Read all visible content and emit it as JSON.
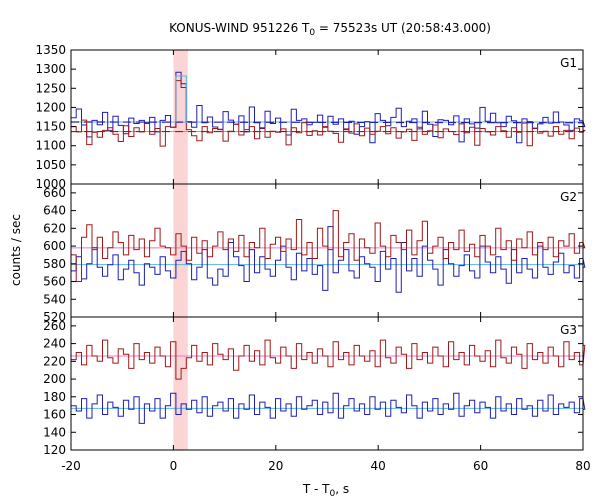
{
  "chart_data": {
    "type": "line",
    "title": "KONUS-WIND 951226 T₀ = 75523s UT (20:58:43.000)",
    "title_parts": {
      "prefix": "KONUS-WIND 951226 T",
      "sub": "0",
      "suffix": " = 75523s UT (20:58:43.000)"
    },
    "xlabel_parts": {
      "prefix": "T - T",
      "sub": "0",
      "suffix": ", s"
    },
    "ylabel": "counts / sec",
    "xlim": [
      -20,
      80
    ],
    "xticks": [
      "-20",
      "0",
      "20",
      "40",
      "60",
      "80"
    ],
    "highlight_interval": [
      0,
      2.8
    ],
    "bin_width": 1.024,
    "colors": {
      "blue": "#1f1fb4",
      "red": "#a01818",
      "blue_bg": "#5ab4e6",
      "red_bg": "#e678c8",
      "highlight": "#fbd5d5",
      "peak_step": "#5ab4e6"
    },
    "panels": [
      {
        "name": "G1",
        "ylim": [
          1000,
          1350
        ],
        "yticks": [
          "1000",
          "1050",
          "1100",
          "1150",
          "1200",
          "1250",
          "1300",
          "1350"
        ],
        "background": {
          "blue": 1162,
          "red": 1137
        },
        "series": [
          {
            "color": "blue",
            "values": [
              1173,
              1196,
              1154,
              1123,
              1166,
              1155,
              1187,
              1140,
              1177,
              1153,
              1131,
              1172,
              1158,
              1166,
              1160,
              1174,
              1136,
              1166,
              1179,
              1148,
              1292,
              1262,
              1163,
              1148,
              1205,
              1160,
              1175,
              1149,
              1142,
              1189,
              1167,
              1156,
              1178,
              1136,
              1201,
              1160,
              1145,
              1190,
              1158,
              1172,
              1137,
              1128,
              1195,
              1166,
              1170,
              1155,
              1161,
              1180,
              1148,
              1177,
              1156,
              1170,
              1142,
              1164,
              1130,
              1150,
              1163,
              1108,
              1184,
              1166,
              1152,
              1174,
              1198,
              1150,
              1164,
              1170,
              1144,
              1190,
              1156,
              1124,
              1168,
              1166,
              1155,
              1178,
              1110,
              1170,
              1157,
              1146,
              1200,
              1164,
              1185,
              1160,
              1150,
              1177,
              1165,
              1108,
              1170,
              1163,
              1145,
              1157,
              1174,
              1159,
              1188,
              1162,
              1154,
              1140,
              1170,
              1165,
              1150
            ]
          },
          {
            "color": "red",
            "values": [
              1150,
              1136,
              1167,
              1103,
              1135,
              1122,
              1140,
              1147,
              1130,
              1111,
              1152,
              1124,
              1147,
              1136,
              1158,
              1130,
              1145,
              1099,
              1150,
              1148,
              1270,
              1252,
              1142,
              1126,
              1113,
              1150,
              1134,
              1145,
              1143,
              1112,
              1138,
              1156,
              1128,
              1142,
              1150,
              1118,
              1147,
              1122,
              1138,
              1135,
              1144,
              1102,
              1147,
              1134,
              1160,
              1127,
              1139,
              1128,
              1150,
              1138,
              1132,
              1109,
              1144,
              1133,
              1157,
              1126,
              1146,
              1130,
              1138,
              1150,
              1131,
              1147,
              1120,
              1136,
              1143,
              1114,
              1148,
              1130,
              1139,
              1154,
              1121,
              1144,
              1137,
              1129,
              1157,
              1134,
              1148,
              1101,
              1145,
              1136,
              1128,
              1150,
              1139,
              1122,
              1147,
              1135,
              1159,
              1100,
              1146,
              1133,
              1138,
              1125,
              1150,
              1130,
              1140,
              1118,
              1146,
              1135,
              1140
            ]
          }
        ]
      },
      {
        "name": "G2",
        "ylim": [
          520,
          670
        ],
        "yticks": [
          "520",
          "540",
          "560",
          "580",
          "600",
          "620",
          "640",
          "660"
        ],
        "background": {
          "blue": 579,
          "red": 598
        },
        "series": [
          {
            "color": "blue",
            "values": [
              572,
              588,
              563,
              580,
              598,
              576,
              566,
              579,
              590,
              562,
              574,
              584,
              570,
              556,
              580,
              576,
              568,
              588,
              572,
              564,
              584,
              594,
              580,
              562,
              576,
              596,
              564,
              556,
              574,
              566,
              604,
              588,
              578,
              560,
              596,
              570,
              588,
              574,
              566,
              584,
              600,
              576,
              562,
              592,
              572,
              586,
              568,
              578,
              550,
              622,
              570,
              584,
              596,
              572,
              564,
              588,
              580,
              576,
              560,
              594,
              574,
              586,
              548,
              604,
              572,
              586,
              566,
              600,
              584,
              574,
              556,
              596,
              580,
              566,
              578,
              590,
              572,
              564,
              600,
              582,
              570,
              588,
              574,
              558,
              596,
              570,
              586,
              574,
              564,
              600,
              576,
              568,
              582,
              592,
              570,
              578,
              564,
              586,
              576
            ]
          },
          {
            "color": "red",
            "values": [
              590,
              560,
              610,
              624,
              596,
              610,
              586,
              598,
              616,
              604,
              590,
              612,
              596,
              608,
              588,
              606,
              620,
              600,
              598,
              590,
              614,
              600,
              584,
              610,
              592,
              606,
              588,
              600,
              616,
              596,
              608,
              594,
              612,
              588,
              604,
              598,
              620,
              586,
              602,
              610,
              594,
              608,
              596,
              630,
              590,
              604,
              586,
              620,
              600,
              596,
              640,
              588,
              604,
              614,
              584,
              608,
              598,
              592,
              626,
              600,
              588,
              612,
              604,
              596,
              618,
              590,
              606,
              628,
              592,
              600,
              610,
              586,
              604,
              596,
              618,
              594,
              602,
              588,
              612,
              600,
              590,
              620,
              596,
              606,
              584,
              608,
              598,
              616,
              590,
              604,
              596,
              610,
              588,
              606,
              600,
              614,
              592,
              604,
              598
            ]
          }
        ]
      },
      {
        "name": "G3",
        "ylim": [
          120,
          270
        ],
        "yticks": [
          "120",
          "140",
          "160",
          "180",
          "200",
          "220",
          "240",
          "260"
        ],
        "background": {
          "blue": 167,
          "red": 226
        },
        "series": [
          {
            "color": "blue",
            "values": [
              170,
              164,
              178,
              156,
              172,
              182,
              160,
              174,
              168,
              158,
              176,
              166,
              180,
              150,
              172,
              164,
              178,
              156,
              170,
              184,
              160,
              172,
              166,
              176,
              162,
              180,
              158,
              170,
              174,
              164,
              178,
              156,
              172,
              166,
              182,
              160,
              174,
              168,
              156,
              178,
              164,
              172,
              158,
              180,
              166,
              170,
              176,
              160,
              174,
              162,
              184,
              156,
              170,
              178,
              164,
              172,
              160,
              180,
              166,
              174,
              158,
              176,
              168,
              162,
              182,
              170,
              156,
              174,
              164,
              178,
              160,
              172,
              166,
              184,
              158,
              170,
              176,
              162,
              174,
              168,
              156,
              180,
              164,
              172,
              160,
              178,
              166,
              170,
              158,
              176,
              164,
              182,
              160,
              172,
              168,
              174,
              162,
              178,
              166
            ]
          },
          {
            "color": "red",
            "values": [
              222,
              230,
              216,
              238,
              226,
              220,
              244,
              224,
              218,
              234,
              228,
              212,
              240,
              222,
              230,
              218,
              236,
              226,
              214,
              242,
              200,
              212,
              224,
              238,
              220,
              230,
              216,
              240,
              228,
              222,
              234,
              210,
              226,
              238,
              220,
              232,
              216,
              244,
              224,
              218,
              236,
              226,
              212,
              240,
              222,
              230,
              218,
              234,
              226,
              214,
              242,
              222,
              230,
              216,
              238,
              226,
              220,
              232,
              214,
              244,
              224,
              218,
              236,
              228,
              212,
              240,
              222,
              230,
              218,
              236,
              226,
              214,
              242,
              222,
              230,
              216,
              238,
              226,
              220,
              232,
              214,
              244,
              224,
              218,
              236,
              228,
              212,
              240,
              222,
              230,
              218,
              236,
              226,
              214,
              242,
              222,
              230,
              216,
              238
            ]
          }
        ]
      }
    ]
  }
}
